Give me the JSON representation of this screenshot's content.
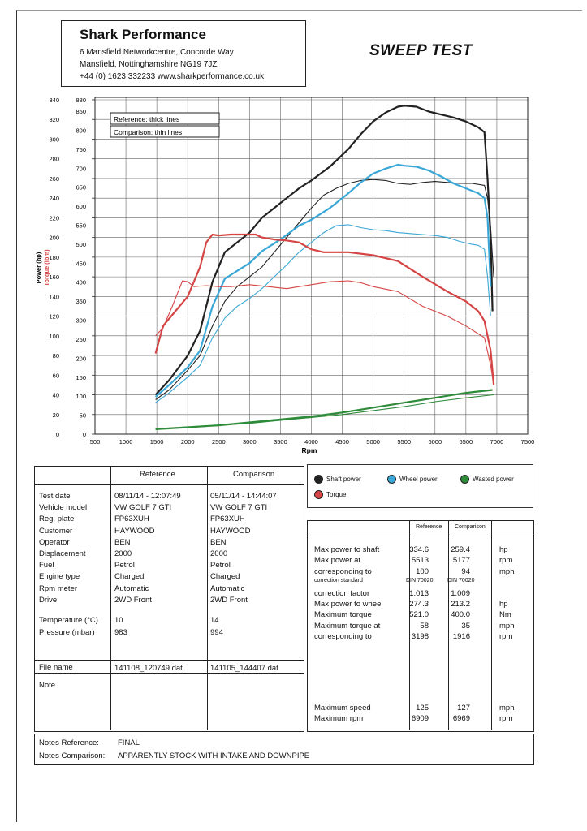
{
  "header": {
    "company": "Shark Performance",
    "address1": "6 Mansfield Networkcentre, Concorde Way",
    "address2": "Mansfield, Nottinghamshire NG19 7JZ",
    "contact": "+44 (0) 1623 332233 www.sharkperformance.co.uk",
    "title": "SWEEP TEST"
  },
  "colors": {
    "shaft": "#222222",
    "wheel": "#3aa7d6",
    "wasted": "#2e8b3a",
    "torque": "#d64545"
  },
  "chart_data": {
    "type": "line",
    "xlabel": "Rpm",
    "ylabel_left": "Power (hp)",
    "ylabel_torque": "Torque (lbm)",
    "xlim": [
      500,
      7500
    ],
    "x_ticks": [
      "500",
      "1000",
      "1500",
      "2000",
      "2500",
      "3000",
      "3500",
      "4000",
      "4500",
      "5000",
      "5500",
      "6000",
      "6500",
      "7000",
      "7500"
    ],
    "power_ticks": [
      "0",
      "20",
      "40",
      "60",
      "80",
      "100",
      "120",
      "140",
      "160",
      "180",
      "200",
      "220",
      "240",
      "260",
      "280",
      "300",
      "320",
      "340"
    ],
    "torque_ticks": [
      "0",
      "50",
      "100",
      "150",
      "200",
      "250",
      "300",
      "350",
      "400",
      "450",
      "500",
      "550",
      "600",
      "650",
      "700",
      "750",
      "800",
      "850",
      "880"
    ],
    "ylim_power": [
      0,
      340
    ],
    "annotations": [
      "Reference: thick lines",
      "Comparison: thin lines"
    ],
    "series": [
      {
        "name": "Shaft power",
        "run": "Reference",
        "color": "shaft",
        "axis": "power",
        "x": [
          1480,
          1700,
          2000,
          2200,
          2400,
          2600,
          2800,
          3000,
          3200,
          3500,
          3800,
          4000,
          4300,
          4600,
          4800,
          5000,
          5200,
          5400,
          5500,
          5700,
          5900,
          6100,
          6300,
          6500,
          6700,
          6800,
          6850,
          6900,
          6930
        ],
        "y": [
          40,
          55,
          80,
          105,
          155,
          185,
          195,
          205,
          220,
          235,
          250,
          258,
          272,
          290,
          305,
          318,
          327,
          333,
          334,
          333,
          328,
          325,
          322,
          318,
          312,
          307,
          260,
          200,
          125
        ]
      },
      {
        "name": "Shaft power",
        "run": "Comparison",
        "color": "shaft",
        "axis": "power",
        "x": [
          1480,
          1700,
          2000,
          2200,
          2400,
          2600,
          2800,
          3000,
          3200,
          3400,
          3600,
          3800,
          4000,
          4200,
          4400,
          4600,
          4800,
          5000,
          5200,
          5400,
          5600,
          5800,
          6000,
          6200,
          6400,
          6600,
          6800,
          6850,
          6900,
          6950
        ],
        "y": [
          35,
          45,
          65,
          80,
          110,
          135,
          150,
          160,
          170,
          185,
          200,
          215,
          230,
          243,
          250,
          255,
          258,
          259,
          258,
          255,
          254,
          256,
          257,
          256,
          255,
          255,
          253,
          240,
          210,
          160
        ]
      },
      {
        "name": "Wheel power",
        "run": "Reference",
        "color": "wheel",
        "axis": "power",
        "x": [
          1480,
          1700,
          2000,
          2200,
          2400,
          2600,
          2800,
          3000,
          3200,
          3500,
          3800,
          4000,
          4300,
          4600,
          4800,
          5000,
          5200,
          5400,
          5500,
          5700,
          5900,
          6100,
          6300,
          6500,
          6700,
          6800,
          6850,
          6900
        ],
        "y": [
          38,
          50,
          68,
          85,
          130,
          158,
          166,
          174,
          186,
          198,
          212,
          218,
          230,
          245,
          256,
          265,
          270,
          274,
          273,
          272,
          268,
          262,
          255,
          250,
          245,
          240,
          220,
          150
        ]
      },
      {
        "name": "Wheel power",
        "run": "Comparison",
        "color": "wheel",
        "axis": "power",
        "x": [
          1480,
          1700,
          2000,
          2200,
          2400,
          2600,
          2800,
          3000,
          3200,
          3400,
          3600,
          3800,
          4000,
          4200,
          4400,
          4600,
          4800,
          5000,
          5200,
          5400,
          5600,
          5800,
          6000,
          6200,
          6400,
          6600,
          6700,
          6800,
          6850,
          6900
        ],
        "y": [
          32,
          42,
          58,
          70,
          98,
          118,
          130,
          138,
          148,
          160,
          172,
          185,
          195,
          205,
          212,
          213,
          210,
          208,
          207,
          205,
          204,
          203,
          202,
          200,
          196,
          193,
          192,
          188,
          160,
          120
        ]
      },
      {
        "name": "Torque",
        "run": "Reference",
        "color": "torque",
        "axis": "power",
        "x": [
          1480,
          1600,
          1800,
          2000,
          2100,
          2200,
          2300,
          2400,
          2500,
          2700,
          2900,
          3100,
          3200,
          3400,
          3600,
          3800,
          4000,
          4200,
          4600,
          5000,
          5400,
          5800,
          6200,
          6500,
          6700,
          6800,
          6900,
          6950
        ],
        "y": [
          82,
          110,
          125,
          140,
          155,
          170,
          195,
          203,
          202,
          203,
          203,
          203,
          200,
          198,
          197,
          195,
          188,
          185,
          185,
          182,
          176,
          160,
          145,
          135,
          125,
          115,
          85,
          50
        ]
      },
      {
        "name": "Torque",
        "run": "Comparison",
        "color": "torque",
        "axis": "power",
        "x": [
          1480,
          1600,
          1750,
          1916,
          2000,
          2100,
          2300,
          2500,
          2700,
          3000,
          3300,
          3600,
          3800,
          4000,
          4300,
          4600,
          4800,
          5000,
          5400,
          5800,
          6200,
          6500,
          6700,
          6800,
          6900,
          6950
        ],
        "y": [
          100,
          108,
          130,
          156,
          155,
          150,
          151,
          150,
          150,
          152,
          150,
          148,
          150,
          152,
          155,
          156,
          154,
          150,
          145,
          130,
          120,
          110,
          102,
          98,
          70,
          50
        ]
      },
      {
        "name": "Wasted power",
        "run": "Reference",
        "color": "wasted",
        "axis": "power",
        "x": [
          1480,
          2000,
          2500,
          3000,
          3500,
          4000,
          4500,
          5000,
          5500,
          6000,
          6500,
          6930
        ],
        "y": [
          5,
          7,
          9,
          12,
          15,
          18,
          22,
          27,
          32,
          37,
          42,
          45
        ]
      },
      {
        "name": "Wasted power",
        "run": "Comparison",
        "color": "wasted",
        "axis": "power",
        "x": [
          1480,
          2000,
          2500,
          3000,
          3500,
          4000,
          4500,
          5000,
          5500,
          6000,
          6500,
          6950
        ],
        "y": [
          5,
          7,
          9,
          11,
          14,
          17,
          20,
          24,
          28,
          33,
          37,
          40
        ]
      }
    ],
    "legend": [
      "Shaft power",
      "Wheel power",
      "Wasted power",
      "Torque"
    ]
  },
  "details": {
    "col_reference": "Reference",
    "col_comparison": "Comparison",
    "rows": [
      {
        "label": "Test date",
        "ref": "08/11/14 - 12:07:49",
        "cmp": "05/11/14 - 14:44:07"
      },
      {
        "label": "Vehicle model",
        "ref": "VW GOLF 7 GTI",
        "cmp": "VW GOLF 7 GTI"
      },
      {
        "label": "Reg. plate",
        "ref": "FP63XUH",
        "cmp": "FP63XUH"
      },
      {
        "label": "Customer",
        "ref": "HAYWOOD",
        "cmp": "HAYWOOD"
      },
      {
        "label": "Operator",
        "ref": "BEN",
        "cmp": "BEN"
      },
      {
        "label": "Displacement",
        "ref": "2000",
        "cmp": "2000"
      },
      {
        "label": "Fuel",
        "ref": "Petrol",
        "cmp": "Petrol"
      },
      {
        "label": "Engine type",
        "ref": "Charged",
        "cmp": "Charged"
      },
      {
        "label": "Rpm meter",
        "ref": "Automatic",
        "cmp": "Automatic"
      },
      {
        "label": "Drive",
        "ref": "2WD Front",
        "cmp": "2WD Front"
      }
    ],
    "env_rows": [
      {
        "label": "Temperature (°C)",
        "ref": "10",
        "cmp": "14"
      },
      {
        "label": "Pressure (mbar)",
        "ref": "983",
        "cmp": "994"
      }
    ],
    "file_label": "File name",
    "file_ref": "141108_120749.dat",
    "file_cmp": "141105_144407.dat",
    "note_label": "Note"
  },
  "results": {
    "col_reference": "Reference",
    "col_comparison": "Comparison",
    "rows": [
      {
        "label": "Max power to shaft",
        "ref": "334.6",
        "cmp": "259.4",
        "unit": "hp"
      },
      {
        "label": "Max power at",
        "ref": "5513",
        "cmp": "5177",
        "unit": "rpm"
      },
      {
        "label": "corresponding to",
        "ref": "100",
        "cmp": "94",
        "unit": "mph"
      },
      {
        "label": "correction standard",
        "ref": "DIN 70020",
        "cmp": "DIN 70020",
        "unit": "",
        "small": true
      },
      {
        "label": "correction factor",
        "ref": "1.013",
        "cmp": "1.009",
        "unit": ""
      },
      {
        "label": "Max power to wheel",
        "ref": "274.3",
        "cmp": "213.2",
        "unit": "hp"
      },
      {
        "label": "Maximum torque",
        "ref": "521.0",
        "cmp": "400.0",
        "unit": "Nm"
      },
      {
        "label": "Maximum torque at",
        "ref": "58",
        "cmp": "35",
        "unit": "mph"
      },
      {
        "label": "corresponding to",
        "ref": "3198",
        "cmp": "1916",
        "unit": "rpm"
      }
    ],
    "speed_rows": [
      {
        "label": "Maximum speed",
        "ref": "125",
        "cmp": "127",
        "unit": "mph"
      },
      {
        "label": "Maximum rpm",
        "ref": "6909",
        "cmp": "6969",
        "unit": "rpm"
      }
    ]
  },
  "notes": {
    "ref_label": "Notes Reference:",
    "ref_value": "FINAL",
    "cmp_label": "Notes Comparison:",
    "cmp_value": "APPARENTLY STOCK WITH INTAKE AND DOWNPIPE"
  }
}
